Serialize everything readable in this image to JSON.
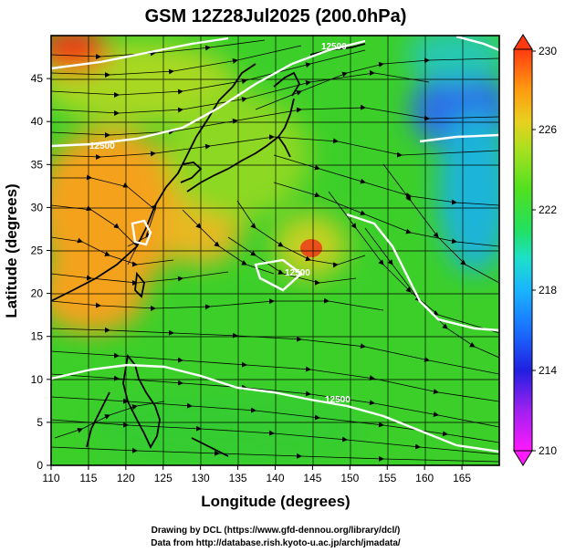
{
  "title": "GSM 12Z28Jul2025 (200.0hPa)",
  "xaxis": {
    "label": "Longitude (degrees)",
    "range": [
      110,
      170
    ],
    "ticks": [
      110,
      115,
      120,
      125,
      130,
      135,
      140,
      145,
      150,
      155,
      160,
      165
    ],
    "tick_labels": [
      "110",
      "115",
      "120",
      "125",
      "130",
      "135",
      "140",
      "145",
      "150",
      "155",
      "160",
      "165"
    ]
  },
  "yaxis": {
    "label": "Latitude  (degrees)",
    "range": [
      0,
      50
    ],
    "ticks": [
      0,
      5,
      10,
      15,
      20,
      25,
      30,
      35,
      40,
      45
    ],
    "tick_labels": [
      "0",
      "5",
      "10",
      "15",
      "20",
      "25",
      "30",
      "35",
      "40",
      "45"
    ]
  },
  "colorbar": {
    "range": [
      210,
      230
    ],
    "tick_values": [
      230,
      226,
      222,
      218,
      214,
      210
    ],
    "tick_labels": [
      "230",
      "226",
      "222",
      "218",
      "214",
      "210"
    ],
    "colors": [
      "#ff1aff",
      "#a020f0",
      "#2020e0",
      "#1a6fff",
      "#1ab4ff",
      "#1ee0c8",
      "#22e060",
      "#50e020",
      "#a8e020",
      "#e8d020",
      "#ff9a10",
      "#ff3a10"
    ]
  },
  "contour_labels": [
    "12500",
    "12500",
    "12500",
    "12500"
  ],
  "credits": [
    "Drawing by DCL (https://www.gfd-dennou.org/library/dcl/)",
    "Data from http://database.rish.kyoto-u.ac.jp/arch/jmadata/"
  ],
  "colors": {
    "warm": "#f4a21a",
    "hot": "#f03a18",
    "green": "#3ccf2a",
    "yellowgreen": "#9cd820",
    "cold": "#1a8cff",
    "deepcold": "#2a4fe0",
    "contour": "#ffffff",
    "coast": "#000000"
  }
}
